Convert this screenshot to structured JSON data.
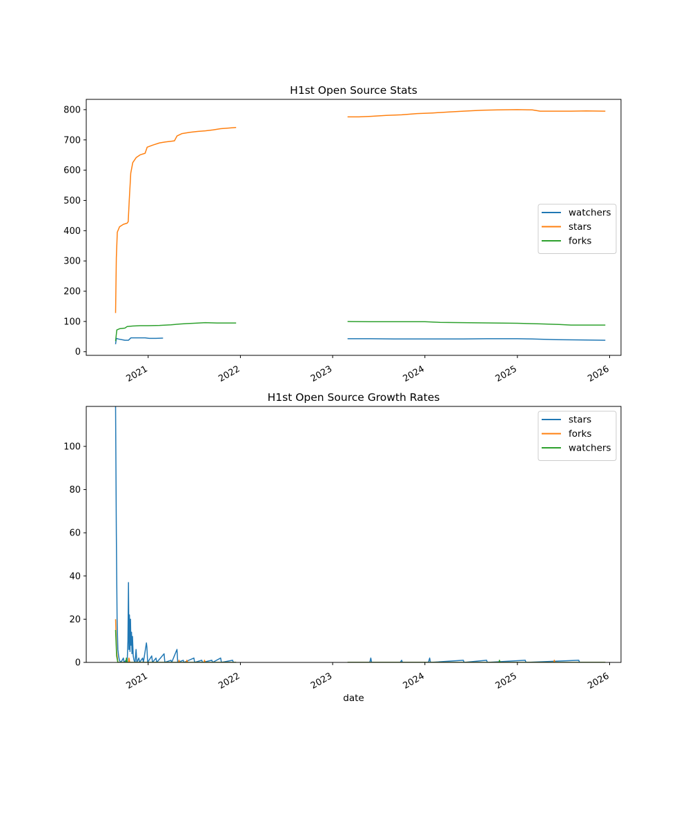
{
  "colors": {
    "blue": "#1f77b4",
    "orange": "#ff7f0e",
    "green": "#2ca02c"
  },
  "chart_data": [
    {
      "type": "line",
      "title": "H1st Open Source Stats",
      "xlabel": "",
      "ylabel": "",
      "xlim": [
        "2020-05-01",
        "2026-02-15"
      ],
      "ylim": [
        -12,
        834
      ],
      "x_ticks": [
        "2021",
        "2022",
        "2023",
        "2024",
        "2025",
        "2026"
      ],
      "y_ticks": [
        "0",
        "100",
        "200",
        "300",
        "400",
        "500",
        "600",
        "700",
        "800"
      ],
      "legend_position": "center-right",
      "series": [
        {
          "name": "watchers",
          "color": "#1f77b4",
          "segments": [
            [
              [
                "2020-08-25",
                25
              ],
              [
                "2020-08-28",
                44
              ],
              [
                "2020-09-05",
                42
              ],
              [
                "2020-10-01",
                38
              ],
              [
                "2020-10-15",
                38
              ],
              [
                "2020-10-25",
                46
              ],
              [
                "2020-12-01",
                46
              ],
              [
                "2020-12-20",
                46
              ],
              [
                "2021-01-05",
                44
              ],
              [
                "2021-02-01",
                44
              ],
              [
                "2021-03-01",
                45
              ]
            ],
            [
              [
                "2023-03-01",
                43
              ],
              [
                "2023-06-01",
                43
              ],
              [
                "2023-09-01",
                42
              ],
              [
                "2024-01-01",
                42
              ],
              [
                "2024-06-01",
                42
              ],
              [
                "2024-09-01",
                43
              ],
              [
                "2025-01-01",
                43
              ],
              [
                "2025-03-01",
                42
              ],
              [
                "2025-06-01",
                40
              ],
              [
                "2025-09-01",
                39
              ],
              [
                "2025-12-15",
                38
              ]
            ]
          ]
        },
        {
          "name": "stars",
          "color": "#ff7f0e",
          "segments": [
            [
              [
                "2020-08-25",
                128
              ],
              [
                "2020-08-28",
                310
              ],
              [
                "2020-09-01",
                395
              ],
              [
                "2020-09-10",
                413
              ],
              [
                "2020-09-25",
                421
              ],
              [
                "2020-10-10",
                425
              ],
              [
                "2020-10-14",
                430
              ],
              [
                "2020-10-18",
                500
              ],
              [
                "2020-10-24",
                590
              ],
              [
                "2020-11-01",
                625
              ],
              [
                "2020-11-15",
                642
              ],
              [
                "2020-12-01",
                651
              ],
              [
                "2020-12-20",
                656
              ],
              [
                "2020-12-28",
                676
              ],
              [
                "2021-01-20",
                683
              ],
              [
                "2021-02-15",
                690
              ],
              [
                "2021-03-10",
                693
              ],
              [
                "2021-04-15",
                697
              ],
              [
                "2021-04-25",
                713
              ],
              [
                "2021-05-15",
                721
              ],
              [
                "2021-06-15",
                725
              ],
              [
                "2021-07-15",
                728
              ],
              [
                "2021-08-15",
                730
              ],
              [
                "2021-09-15",
                733
              ],
              [
                "2021-10-15",
                737
              ],
              [
                "2021-12-15",
                741
              ]
            ],
            [
              [
                "2023-03-01",
                776
              ],
              [
                "2023-04-15",
                776
              ],
              [
                "2023-06-01",
                778
              ],
              [
                "2023-08-01",
                781
              ],
              [
                "2023-10-01",
                783
              ],
              [
                "2023-12-01",
                787
              ],
              [
                "2024-02-01",
                789
              ],
              [
                "2024-04-01",
                792
              ],
              [
                "2024-06-01",
                795
              ],
              [
                "2024-08-15",
                798
              ],
              [
                "2024-10-15",
                799
              ],
              [
                "2025-01-01",
                800
              ],
              [
                "2025-03-01",
                799
              ],
              [
                "2025-04-01",
                795
              ],
              [
                "2025-06-01",
                795
              ],
              [
                "2025-08-01",
                795
              ],
              [
                "2025-10-01",
                796
              ],
              [
                "2025-12-15",
                795
              ]
            ]
          ]
        },
        {
          "name": "forks",
          "color": "#2ca02c",
          "segments": [
            [
              [
                "2020-08-25",
                35
              ],
              [
                "2020-08-30",
                72
              ],
              [
                "2020-09-10",
                76
              ],
              [
                "2020-10-01",
                78
              ],
              [
                "2020-10-10",
                83
              ],
              [
                "2020-11-01",
                85
              ],
              [
                "2020-12-01",
                86
              ],
              [
                "2021-01-01",
                86
              ],
              [
                "2021-02-15",
                87
              ],
              [
                "2021-04-01",
                89
              ],
              [
                "2021-05-01",
                91
              ],
              [
                "2021-06-01",
                93
              ],
              [
                "2021-07-01",
                94
              ],
              [
                "2021-08-15",
                96
              ],
              [
                "2021-10-01",
                95
              ],
              [
                "2021-12-15",
                95
              ]
            ],
            [
              [
                "2023-03-01",
                100
              ],
              [
                "2023-06-01",
                99
              ],
              [
                "2023-09-01",
                99
              ],
              [
                "2024-01-01",
                99
              ],
              [
                "2024-03-01",
                97
              ],
              [
                "2024-06-01",
                96
              ],
              [
                "2024-10-01",
                95
              ],
              [
                "2025-01-01",
                94
              ],
              [
                "2025-04-01",
                92
              ],
              [
                "2025-06-15",
                90
              ],
              [
                "2025-08-01",
                88
              ],
              [
                "2025-12-15",
                88
              ]
            ]
          ]
        }
      ]
    },
    {
      "type": "line",
      "title": "H1st Open Source Growth Rates",
      "xlabel": "date",
      "ylabel": "",
      "xlim": [
        "2020-05-01",
        "2026-02-15"
      ],
      "ylim": [
        0,
        118.5
      ],
      "x_ticks": [
        "2021",
        "2022",
        "2023",
        "2024",
        "2025",
        "2026"
      ],
      "y_ticks": [
        "0",
        "20",
        "40",
        "60",
        "80",
        "100"
      ],
      "legend_position": "upper-right",
      "series": [
        {
          "name": "stars",
          "color": "#1f77b4",
          "segments": [
            [
              [
                "2020-08-25",
                118.5
              ],
              [
                "2020-08-28",
                60
              ],
              [
                "2020-08-31",
                20
              ],
              [
                "2020-09-03",
                6
              ],
              [
                "2020-09-06",
                3
              ],
              [
                "2020-09-09",
                1
              ],
              [
                "2020-09-15",
                0
              ],
              [
                "2020-09-25",
                2
              ],
              [
                "2020-09-28",
                0
              ],
              [
                "2020-10-05",
                1
              ],
              [
                "2020-10-10",
                0
              ],
              [
                "2020-10-13",
                10
              ],
              [
                "2020-10-15",
                37
              ],
              [
                "2020-10-17",
                6
              ],
              [
                "2020-10-19",
                22
              ],
              [
                "2020-10-21",
                5
              ],
              [
                "2020-10-23",
                20
              ],
              [
                "2020-10-25",
                8
              ],
              [
                "2020-10-27",
                14
              ],
              [
                "2020-10-29",
                4
              ],
              [
                "2020-10-31",
                12
              ],
              [
                "2020-11-03",
                3
              ],
              [
                "2020-11-06",
                1
              ],
              [
                "2020-11-10",
                0
              ],
              [
                "2020-11-14",
                6
              ],
              [
                "2020-11-17",
                0
              ],
              [
                "2020-11-25",
                2
              ],
              [
                "2020-11-28",
                0
              ],
              [
                "2020-12-10",
                2
              ],
              [
                "2020-12-13",
                0
              ],
              [
                "2020-12-25",
                9
              ],
              [
                "2020-12-27",
                7
              ],
              [
                "2020-12-30",
                0
              ],
              [
                "2021-01-15",
                3
              ],
              [
                "2021-01-18",
                0
              ],
              [
                "2021-02-01",
                2
              ],
              [
                "2021-02-04",
                0
              ],
              [
                "2021-03-05",
                4
              ],
              [
                "2021-03-08",
                0
              ],
              [
                "2021-04-01",
                1
              ],
              [
                "2021-04-04",
                0
              ],
              [
                "2021-04-25",
                6
              ],
              [
                "2021-04-28",
                0
              ],
              [
                "2021-05-20",
                1
              ],
              [
                "2021-05-23",
                0
              ],
              [
                "2021-07-01",
                2
              ],
              [
                "2021-07-04",
                0
              ],
              [
                "2021-08-01",
                1
              ],
              [
                "2021-08-04",
                0
              ],
              [
                "2021-09-10",
                1
              ],
              [
                "2021-09-13",
                0
              ],
              [
                "2021-10-15",
                2
              ],
              [
                "2021-10-18",
                0
              ],
              [
                "2021-12-01",
                1
              ],
              [
                "2021-12-04",
                0
              ],
              [
                "2021-12-15",
                0
              ]
            ],
            [
              [
                "2023-03-01",
                0
              ],
              [
                "2023-05-28",
                0
              ],
              [
                "2023-06-01",
                2
              ],
              [
                "2023-06-04",
                0
              ],
              [
                "2023-09-25",
                0
              ],
              [
                "2023-10-01",
                1
              ],
              [
                "2023-10-04",
                0
              ],
              [
                "2024-01-15",
                0
              ],
              [
                "2024-01-20",
                2
              ],
              [
                "2024-01-23",
                0
              ],
              [
                "2024-06-01",
                1
              ],
              [
                "2024-06-04",
                0
              ],
              [
                "2024-09-01",
                1
              ],
              [
                "2024-09-04",
                0
              ],
              [
                "2025-02-01",
                1
              ],
              [
                "2025-02-04",
                0
              ],
              [
                "2025-09-01",
                1
              ],
              [
                "2025-09-04",
                0
              ],
              [
                "2025-12-15",
                0
              ]
            ]
          ]
        },
        {
          "name": "forks",
          "color": "#ff7f0e",
          "segments": [
            [
              [
                "2020-08-25",
                20
              ],
              [
                "2020-08-29",
                5
              ],
              [
                "2020-09-03",
                0
              ],
              [
                "2020-10-15",
                0
              ],
              [
                "2020-10-17",
                2
              ],
              [
                "2020-10-20",
                0
              ],
              [
                "2021-05-01",
                0
              ],
              [
                "2021-05-03",
                1
              ],
              [
                "2021-05-06",
                0
              ],
              [
                "2021-06-01",
                0
              ],
              [
                "2021-06-03",
                1
              ],
              [
                "2021-06-06",
                0
              ],
              [
                "2021-08-10",
                0
              ],
              [
                "2021-08-12",
                1
              ],
              [
                "2021-08-15",
                0
              ],
              [
                "2021-12-15",
                0
              ]
            ],
            [
              [
                "2023-03-01",
                0
              ],
              [
                "2025-05-25",
                0
              ],
              [
                "2025-05-27",
                1
              ],
              [
                "2025-05-30",
                0
              ],
              [
                "2025-12-15",
                0
              ]
            ]
          ]
        },
        {
          "name": "watchers",
          "color": "#2ca02c",
          "segments": [
            [
              [
                "2020-08-25",
                15
              ],
              [
                "2020-08-29",
                3
              ],
              [
                "2020-09-03",
                0
              ],
              [
                "2020-10-05",
                0
              ],
              [
                "2020-10-07",
                2
              ],
              [
                "2020-10-10",
                0
              ],
              [
                "2021-12-15",
                0
              ]
            ],
            [
              [
                "2023-03-01",
                0
              ],
              [
                "2024-10-20",
                0
              ],
              [
                "2024-10-22",
                1
              ],
              [
                "2024-10-25",
                0
              ],
              [
                "2025-12-15",
                0
              ]
            ]
          ]
        }
      ]
    }
  ]
}
